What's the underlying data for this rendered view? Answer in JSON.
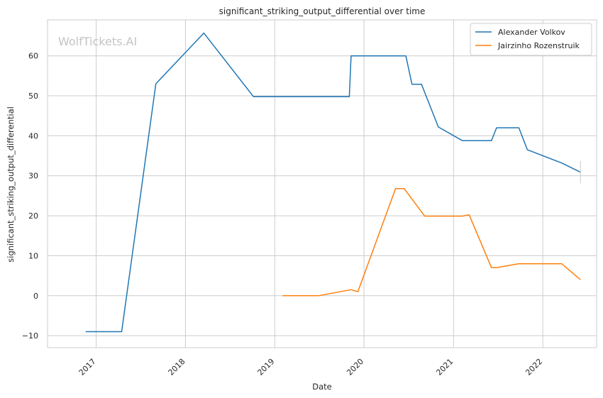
{
  "chart_data": {
    "type": "line",
    "title": "significant_striking_output_differential over time",
    "xlabel": "Date",
    "ylabel": "significant_striking_output_differential",
    "watermark": "WolfTickets.AI",
    "x_ticks": [
      "2017",
      "2018",
      "2019",
      "2020",
      "2021",
      "2022"
    ],
    "y_ticks": [
      -10,
      0,
      10,
      20,
      30,
      40,
      50,
      60
    ],
    "xlim": [
      "2016-06-16",
      "2022-08-09"
    ],
    "ylim": [
      -13,
      69
    ],
    "grid": true,
    "legend": "top-right",
    "series": [
      {
        "name": "Alexander Volkov",
        "color": "#1f77b4",
        "points": [
          [
            "2016-11-19",
            -9
          ],
          [
            "2017-04-15",
            -9
          ],
          [
            "2017-09-02",
            53
          ],
          [
            "2018-03-17",
            65.7
          ],
          [
            "2018-10-06",
            49.8
          ],
          [
            "2019-11-02",
            49.8
          ],
          [
            "2019-11-09",
            60
          ],
          [
            "2020-06-20",
            60
          ],
          [
            "2020-07-15",
            52.9
          ],
          [
            "2020-08-23",
            52.9
          ],
          [
            "2020-10-31",
            42.2
          ],
          [
            "2021-02-06",
            38.8
          ],
          [
            "2021-06-05",
            38.8
          ],
          [
            "2021-06-26",
            42
          ],
          [
            "2021-09-25",
            42
          ],
          [
            "2021-10-30",
            36.5
          ],
          [
            "2022-03-19",
            33.2
          ],
          [
            "2022-06-04",
            30.9
          ]
        ]
      },
      {
        "name": "Jairzinho Rozenstruik",
        "color": "#ff7f0e",
        "points": [
          [
            "2019-02-02",
            0
          ],
          [
            "2019-06-29",
            0
          ],
          [
            "2019-11-09",
            1.5
          ],
          [
            "2019-12-07",
            1
          ],
          [
            "2020-05-09",
            26.8
          ],
          [
            "2020-06-13",
            26.8
          ],
          [
            "2020-09-05",
            19.9
          ],
          [
            "2021-02-06",
            19.9
          ],
          [
            "2021-03-06",
            20.2
          ],
          [
            "2021-06-05",
            7
          ],
          [
            "2021-06-26",
            7
          ],
          [
            "2021-09-25",
            8
          ],
          [
            "2022-03-19",
            8
          ],
          [
            "2022-06-04",
            4
          ]
        ]
      }
    ]
  }
}
